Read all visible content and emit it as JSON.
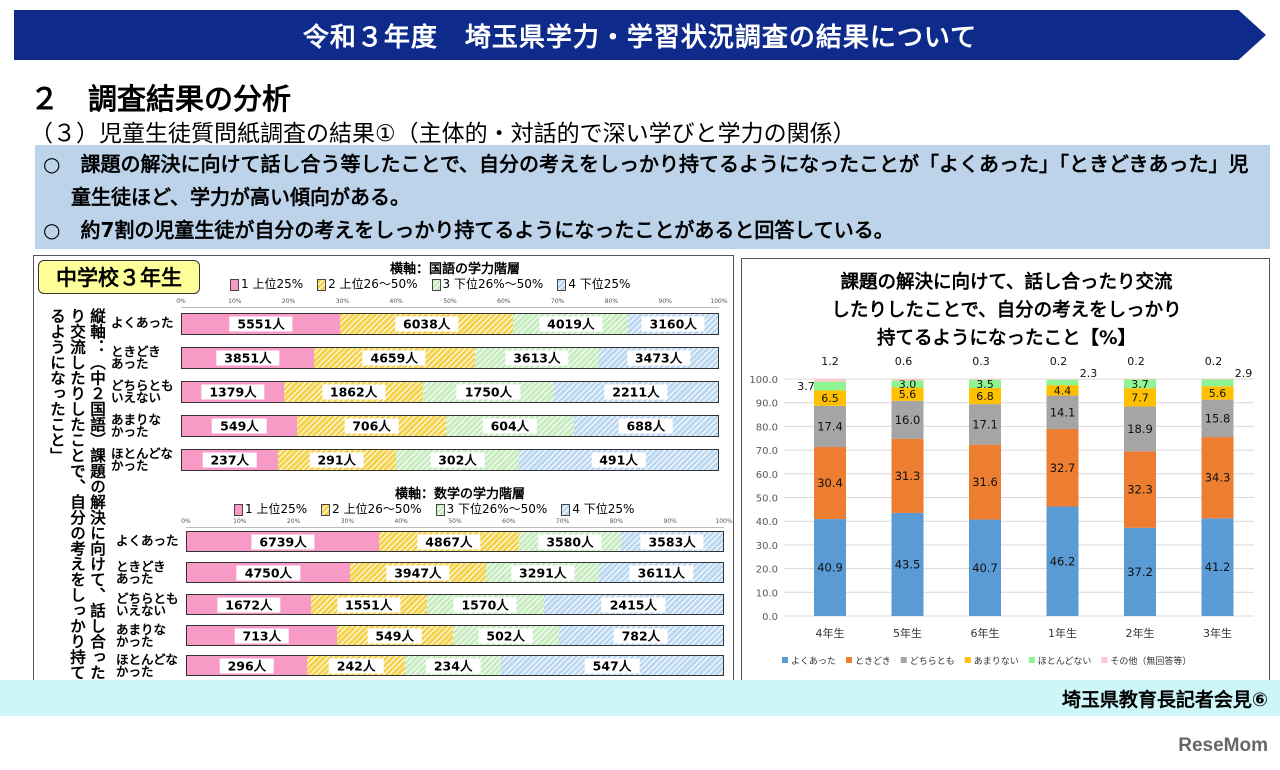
{
  "header": {
    "title": "令和３年度　埼玉県学力・学習状況調査の結果について"
  },
  "section": {
    "title": "２　調査結果の分析",
    "subtitle": "（３）児童生徒質問紙調査の結果①（主体的・対話的で深い学びと学力の関係）"
  },
  "summary": [
    "○　課題の解決に向けて話し合う等したことで、自分の考えをしっかり持てるようになったことが「よくあった」「ときどきあった」児童生徒ほど、学力が高い傾向がある。",
    "○　約7割の児童生徒が自分の考えをしっかり持てるようになったことがあると回答している。"
  ],
  "left_panel": {
    "grade": "中学校３年生",
    "vertical_axis_label": "縦軸：（中２国語）課題の解決に向けて、話し合ったり交流したりしたことで、自分の考えをしっかり持てるようになったこと」"
  },
  "footer": {
    "text": "埼玉県教育長記者会見⑥",
    "logo": "ReseMom"
  },
  "colors": {
    "tier1": "#f79ac6",
    "tier2": "#f5d34e",
    "tier3": "#c6ecc0",
    "tier4": "#bcd8f0",
    "banner": "#0e2a8a",
    "summary_bg": "#bcd3ea",
    "footer_bg": "#ccf6f8"
  },
  "chart_data": [
    {
      "type": "bar",
      "orientation": "horizontal",
      "stacked": "percent",
      "title": "横軸：国語の学力階層",
      "legend": [
        "1 上位25%",
        "2 上位26～50%",
        "3 下位26%～50%",
        "4 下位25%"
      ],
      "ticks": [
        "0%",
        "10%",
        "20%",
        "30%",
        "40%",
        "50%",
        "60%",
        "70%",
        "80%",
        "90%",
        "100%"
      ],
      "categories": [
        "よくあった",
        "ときどき\nあった",
        "どちらとも\nいえない",
        "あまりな\nかった",
        "ほとんどな\nかった"
      ],
      "unit": "人",
      "series": [
        {
          "name": "1 上位25%",
          "values": [
            5551,
            3851,
            1379,
            549,
            237
          ]
        },
        {
          "name": "2 上位26～50%",
          "values": [
            6038,
            4659,
            1862,
            706,
            291
          ]
        },
        {
          "name": "3 下位26%～50%",
          "values": [
            4019,
            3613,
            1750,
            604,
            302
          ]
        },
        {
          "name": "4 下位25%",
          "values": [
            3160,
            3473,
            2211,
            688,
            491
          ]
        }
      ]
    },
    {
      "type": "bar",
      "orientation": "horizontal",
      "stacked": "percent",
      "title": "横軸：数学の学力階層",
      "legend": [
        "1 上位25%",
        "2 上位26～50%",
        "3 下位26%～50%",
        "4 下位25%"
      ],
      "ticks": [
        "0%",
        "10%",
        "20%",
        "30%",
        "40%",
        "50%",
        "60%",
        "70%",
        "80%",
        "90%",
        "100%"
      ],
      "categories": [
        "よくあった",
        "ときどき\nあった",
        "どちらとも\nいえない",
        "あまりな\nかった",
        "ほとんどな\nかった"
      ],
      "unit": "人",
      "series": [
        {
          "name": "1 上位25%",
          "values": [
            6739,
            4750,
            1672,
            713,
            296
          ]
        },
        {
          "name": "2 上位26～50%",
          "values": [
            4867,
            3947,
            1551,
            549,
            242
          ]
        },
        {
          "name": "3 下位26%～50%",
          "values": [
            3580,
            3291,
            1570,
            502,
            234
          ]
        },
        {
          "name": "4 下位25%",
          "values": [
            3583,
            3611,
            2415,
            782,
            547
          ]
        }
      ]
    },
    {
      "type": "bar",
      "orientation": "vertical",
      "stacked": true,
      "title": "課題の解決に向けて、話し合ったり交流\nしたりしたことで、自分の考えをしっかり\n持てるようになったこと【%】",
      "categories": [
        "4年生",
        "5年生",
        "6年生",
        "1年生",
        "2年生",
        "3年生"
      ],
      "ylim": [
        0,
        100
      ],
      "yticks": [
        "0.0",
        "10.0",
        "20.0",
        "30.0",
        "40.0",
        "50.0",
        "60.0",
        "70.0",
        "80.0",
        "90.0",
        "100.0"
      ],
      "grid": true,
      "legend_position": "bottom",
      "series": [
        {
          "name": "よくあった",
          "color": "#5b9bd5",
          "values": [
            40.9,
            43.5,
            40.7,
            46.2,
            37.2,
            41.2
          ]
        },
        {
          "name": "ときどき",
          "color": "#ed7d31",
          "values": [
            30.4,
            31.3,
            31.6,
            32.7,
            32.3,
            34.3
          ]
        },
        {
          "name": "どちらとも",
          "color": "#a5a5a5",
          "values": [
            17.4,
            16.0,
            17.1,
            14.1,
            18.9,
            15.8
          ]
        },
        {
          "name": "あまりない",
          "color": "#ffc000",
          "values": [
            6.5,
            5.6,
            6.8,
            4.4,
            7.7,
            5.6
          ]
        },
        {
          "name": "ほとんどない",
          "color": "#8ef592",
          "values": [
            3.7,
            3.0,
            3.5,
            2.3,
            3.7,
            2.9
          ]
        },
        {
          "name": "その他（無回答等）",
          "color": "#ffc7ce",
          "values": [
            1.2,
            0.6,
            0.3,
            0.2,
            0.2,
            0.2
          ]
        }
      ]
    }
  ]
}
